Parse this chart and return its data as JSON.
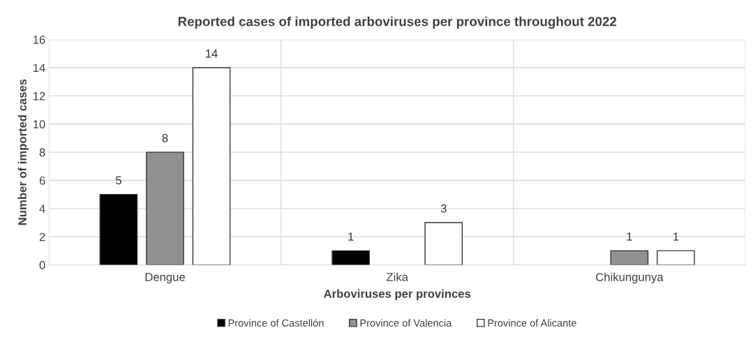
{
  "chart_data": {
    "type": "bar",
    "title": "Reported cases of imported arboviruses per province throughout 2022",
    "xlabel": "Arboviruses per provinces",
    "ylabel": "Number of imported cases",
    "categories": [
      "Dengue",
      "Zika",
      "Chikungunya"
    ],
    "series": [
      {
        "name": "Province of Castellón",
        "color": "#000000",
        "values": [
          5,
          1,
          null
        ]
      },
      {
        "name": "Province of Valencia",
        "color": "#909090",
        "values": [
          8,
          null,
          1
        ]
      },
      {
        "name": "Province of Alicante",
        "color": "#ffffff",
        "values": [
          14,
          3,
          1
        ]
      }
    ],
    "ylim": [
      0,
      16
    ],
    "yticks": [
      0,
      2,
      4,
      6,
      8,
      10,
      12,
      14,
      16
    ],
    "grid": true,
    "legend": "bottom",
    "data_labels": true
  }
}
